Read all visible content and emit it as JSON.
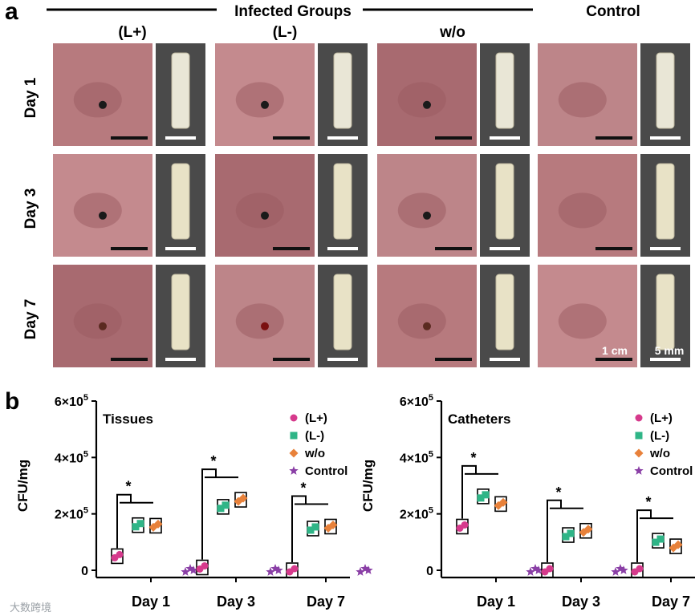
{
  "panel_a": {
    "letter": "a",
    "header": "Infected Groups",
    "groups": [
      "(L+)",
      "(L-)",
      "w/o",
      "Control"
    ],
    "days": [
      "Day 1",
      "Day 3",
      "Day 7"
    ],
    "scale_tissue": "1 cm",
    "scale_catheter": "5 mm"
  },
  "panel_b": {
    "letter": "b"
  },
  "watermark": "大数跨境",
  "colors": {
    "L_plus": "#d63a8c",
    "L_minus": "#2fb587",
    "wo": "#e8813a",
    "control": "#8a3fa6",
    "skin": "#b87b80",
    "catheter_bg": "#444444"
  },
  "chart_data": [
    {
      "type": "scatter",
      "title": "Tissues",
      "ylabel": "CFU/mg",
      "categories": [
        "Day 1",
        "Day 3",
        "Day 7"
      ],
      "ylim": [
        0,
        600000
      ],
      "yticks": [
        {
          "value": 0,
          "label": "0"
        },
        {
          "value": 200000,
          "label": "2×10",
          "exp": "5"
        },
        {
          "value": 400000,
          "label": "4×10",
          "exp": "5"
        },
        {
          "value": 600000,
          "label": "6×10",
          "exp": "5"
        }
      ],
      "series": [
        {
          "name": "(L+)",
          "values": [
            50000,
            10000,
            0
          ]
        },
        {
          "name": "(L-)",
          "values": [
            160000,
            225000,
            148000
          ]
        },
        {
          "name": "w/o",
          "values": [
            158000,
            250000,
            155000
          ]
        },
        {
          "name": "Control",
          "values": [
            0,
            0,
            0
          ]
        }
      ],
      "significance": "*"
    },
    {
      "type": "scatter",
      "title": "Catheters",
      "ylabel": "CFU/mg",
      "categories": [
        "Day 1",
        "Day 3",
        "Day 7"
      ],
      "ylim": [
        0,
        600000
      ],
      "yticks": [
        {
          "value": 0,
          "label": "0"
        },
        {
          "value": 200000,
          "label": "2×10",
          "exp": "5"
        },
        {
          "value": 400000,
          "label": "4×10",
          "exp": "5"
        },
        {
          "value": 600000,
          "label": "6×10",
          "exp": "5"
        }
      ],
      "series": [
        {
          "name": "(L+)",
          "values": [
            155000,
            0,
            0
          ]
        },
        {
          "name": "(L-)",
          "values": [
            262000,
            125000,
            105000
          ]
        },
        {
          "name": "w/o",
          "values": [
            235000,
            140000,
            85000
          ]
        },
        {
          "name": "Control",
          "values": [
            0,
            0,
            0
          ]
        }
      ],
      "significance": "*"
    }
  ]
}
